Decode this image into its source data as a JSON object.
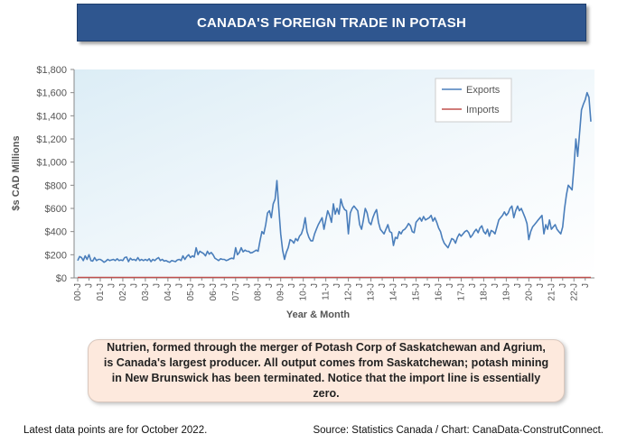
{
  "title": "CANADA'S FOREIGN TRADE IN POTASH",
  "note": "Nutrien, formed through the merger of Potash Corp of Saskatchewan and Agrium, is Canada's largest producer. All output comes from Saskatchewan; potash mining in New Brunswick has been terminated. Notice that the import line is essentially zero.",
  "footer": {
    "left": "Latest data points are for October 2022.",
    "right": "Source: Statistics Canada / Chart: CanaData-ConstrutConnect."
  },
  "colors": {
    "exports": "#4a7ebb",
    "imports": "#c0504d",
    "title_bg": "#2f568f",
    "note_bg": "#fde9dd"
  },
  "chart_data": {
    "type": "line",
    "xlabel": "Year & Month",
    "ylabel": "$s CAD Millions",
    "ylim": [
      0,
      1800
    ],
    "yticks": [
      0,
      200,
      400,
      600,
      800,
      1000,
      1200,
      1400,
      1600,
      1800
    ],
    "ytick_labels": [
      "$0",
      "$200",
      "$400",
      "$600",
      "$800",
      "$1,000",
      "$1,200",
      "$1,400",
      "$1,600",
      "$1,800"
    ],
    "year_labels": [
      "00-J",
      "01-J",
      "02-J",
      "03-J",
      "04-J",
      "05-J",
      "06-J",
      "07-J",
      "08-J",
      "09-J",
      "10-J",
      "11-J",
      "12-J",
      "13-J",
      "14-J",
      "15-J",
      "16-J",
      "17-J",
      "18-J",
      "19-J",
      "20-J",
      "21-J",
      "22-J"
    ],
    "mid_label": "J",
    "grid": false,
    "legend_position": "top-right",
    "x_start": "2000-01",
    "x_end": "2022-10",
    "series": [
      {
        "name": "Exports",
        "values": [
          150,
          185,
          175,
          150,
          190,
          160,
          200,
          150,
          145,
          175,
          150,
          160,
          160,
          150,
          135,
          145,
          160,
          150,
          155,
          160,
          150,
          165,
          150,
          155,
          150,
          175,
          180,
          140,
          170,
          155,
          160,
          150,
          175,
          150,
          160,
          150,
          160,
          150,
          165,
          140,
          160,
          150,
          165,
          175,
          150,
          160,
          145,
          150,
          140,
          135,
          150,
          145,
          140,
          155,
          160,
          150,
          190,
          160,
          185,
          200,
          175,
          190,
          180,
          260,
          200,
          230,
          220,
          210,
          190,
          230,
          205,
          220,
          200,
          170,
          160,
          150,
          165,
          160,
          160,
          150,
          155,
          165,
          170,
          165,
          260,
          200,
          220,
          260,
          225,
          240,
          230,
          230,
          215,
          220,
          230,
          240,
          230,
          320,
          400,
          380,
          460,
          560,
          580,
          520,
          640,
          680,
          840,
          600,
          380,
          240,
          160,
          220,
          260,
          330,
          320,
          300,
          340,
          320,
          360,
          380,
          430,
          520,
          400,
          350,
          320,
          320,
          380,
          420,
          460,
          490,
          520,
          420,
          500,
          580,
          540,
          480,
          640,
          550,
          600,
          550,
          680,
          620,
          590,
          580,
          380,
          560,
          600,
          620,
          600,
          580,
          460,
          420,
          500,
          600,
          560,
          480,
          460,
          520,
          560,
          590,
          480,
          420,
          400,
          380,
          420,
          460,
          400,
          390,
          280,
          350,
          340,
          400,
          380,
          410,
          420,
          440,
          470,
          450,
          400,
          390,
          480,
          500,
          520,
          490,
          530,
          500,
          510,
          520,
          540,
          490,
          520,
          480,
          430,
          400,
          340,
          300,
          280,
          260,
          300,
          340,
          330,
          300,
          350,
          380,
          360,
          380,
          400,
          410,
          390,
          350,
          370,
          400,
          420,
          390,
          430,
          450,
          400,
          380,
          420,
          360,
          410,
          400,
          380,
          440,
          500,
          520,
          540,
          570,
          540,
          560,
          600,
          620,
          520,
          580,
          620,
          580,
          600,
          560,
          520,
          470,
          330,
          400,
          440,
          460,
          480,
          500,
          520,
          540,
          380,
          460,
          420,
          500,
          420,
          440,
          460,
          420,
          400,
          380,
          440,
          600,
          720,
          800,
          780,
          760,
          960,
          1200,
          1050,
          1250,
          1450,
          1500,
          1540,
          1600,
          1560,
          1350
        ]
      },
      {
        "name": "Imports",
        "values": [
          5,
          5
        ]
      }
    ]
  }
}
